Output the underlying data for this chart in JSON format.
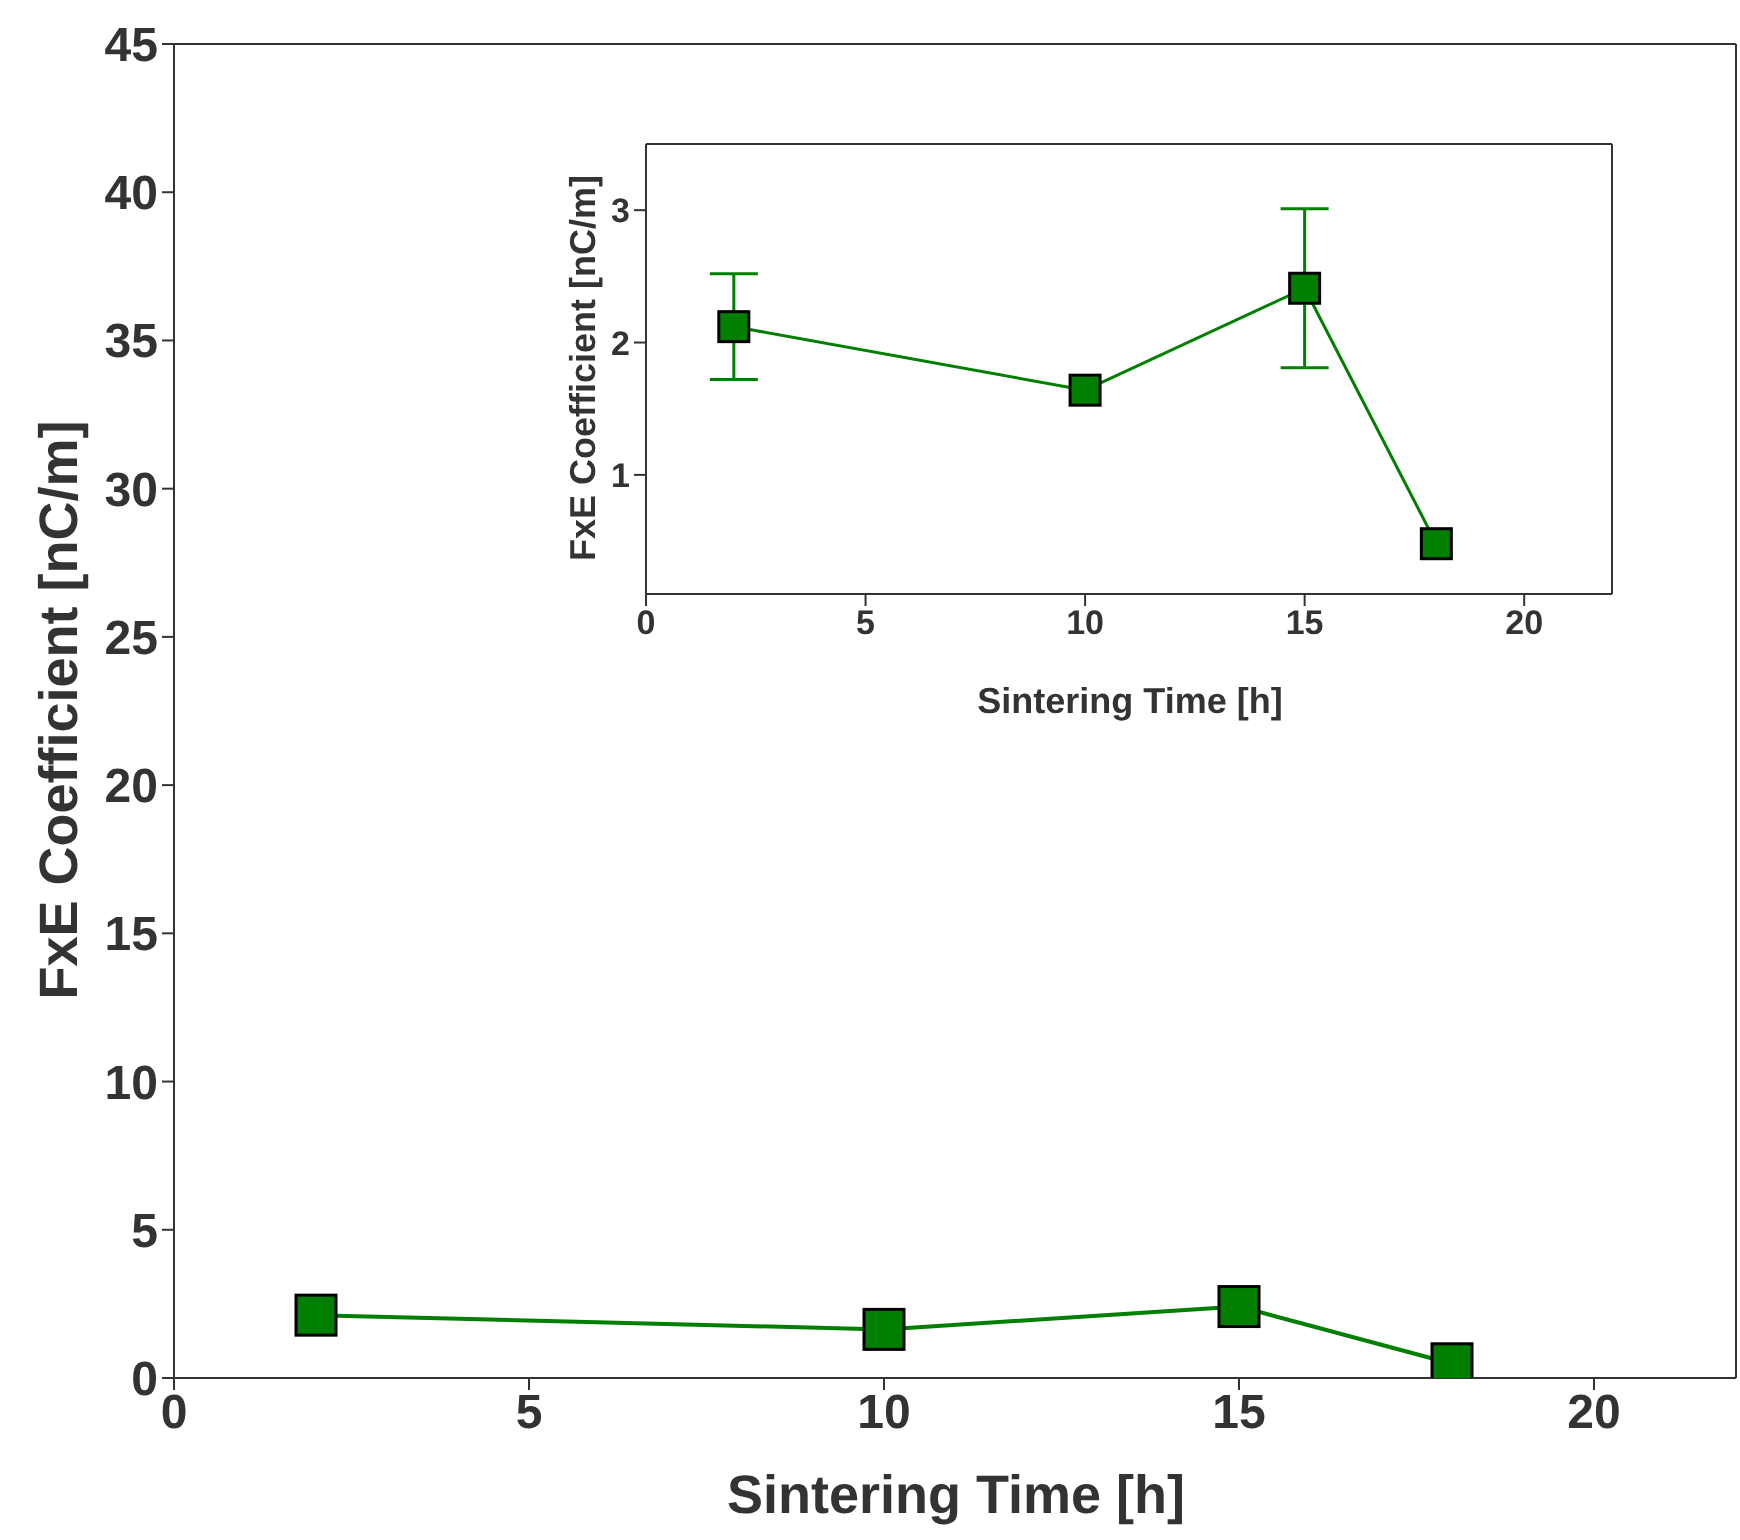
{
  "chart_data": [
    {
      "type": "line",
      "xlabel": "Sintering Time [h]",
      "ylabel": "FxE Coefficient [nC/m]",
      "x": [
        2,
        10,
        15,
        18
      ],
      "values": [
        2.12,
        1.64,
        2.41,
        0.48
      ],
      "color": "#007f00",
      "marker": "square",
      "xlim": [
        0,
        22
      ],
      "xticks": [
        0,
        5,
        10,
        15,
        20
      ],
      "ylim": [
        0,
        45
      ],
      "yticks": [
        0,
        5,
        10,
        15,
        20,
        25,
        30,
        35,
        40,
        45
      ],
      "grid": false,
      "legend": false
    },
    {
      "type": "line",
      "xlabel": "Sintering Time [h]",
      "ylabel": "FxE Coefficient [nC/m]",
      "x": [
        2,
        10,
        15,
        18
      ],
      "values": [
        2.12,
        1.64,
        2.41,
        0.48
      ],
      "errors": [
        0.4,
        null,
        0.6,
        null
      ],
      "color": "#007f00",
      "marker": "square",
      "xlim": [
        0,
        22
      ],
      "xticks": [
        0,
        5,
        10,
        15,
        20
      ],
      "ylim": [
        0.1,
        3.5
      ],
      "yticks": [
        1,
        2,
        3
      ],
      "grid": false,
      "legend": false
    }
  ]
}
